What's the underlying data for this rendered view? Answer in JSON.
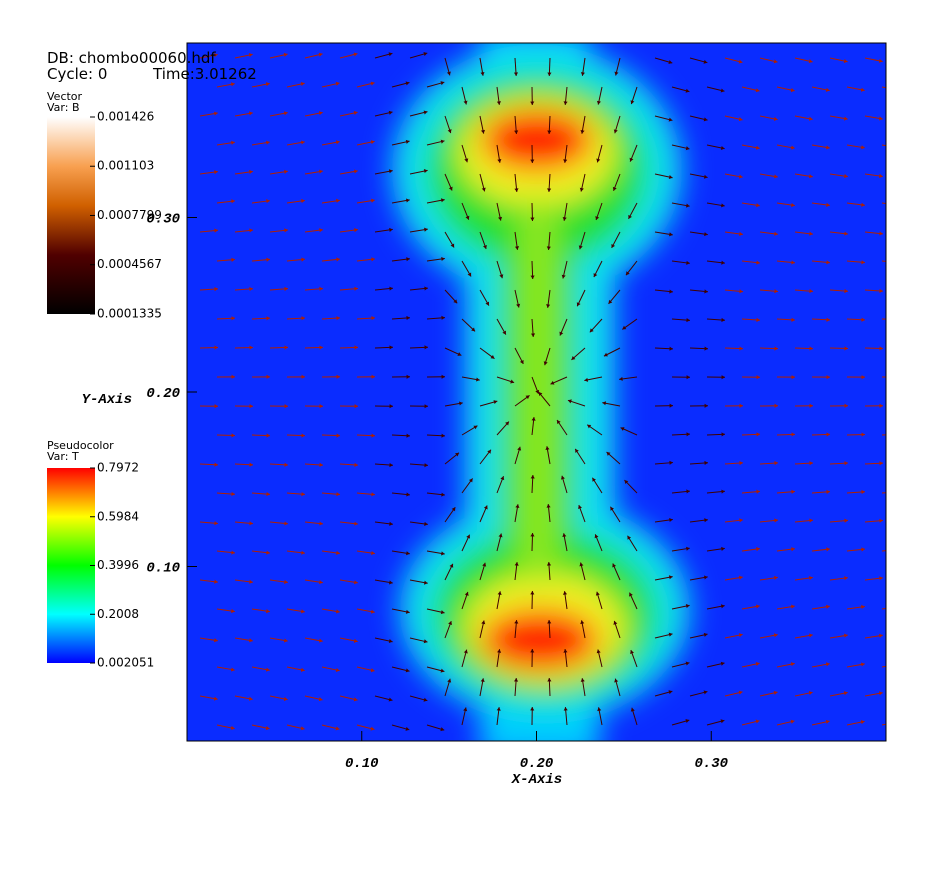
{
  "chart_data": {
    "type": "pseudocolor",
    "db_label": "DB: chombo00060.hdf",
    "cycle_label": "Cycle: 0",
    "time_label": "Time:3.01262",
    "x_label": "X-Axis",
    "y_label": "Y-Axis",
    "xlim": [
      0,
      0.4
    ],
    "ylim": [
      0,
      0.4
    ],
    "xticks": [
      {
        "value": 0.1,
        "label": "0.10"
      },
      {
        "value": 0.2,
        "label": "0.20"
      },
      {
        "value": 0.3,
        "label": "0.30"
      }
    ],
    "yticks": [
      {
        "value": 0.1,
        "label": "0.10"
      },
      {
        "value": 0.2,
        "label": "0.20"
      },
      {
        "value": 0.3,
        "label": "0.30"
      }
    ],
    "legends": [
      {
        "title": "Vector",
        "var": "Var: B",
        "ticks": [
          0.001426,
          0.001103,
          0.0007799,
          0.0004567,
          0.0001335
        ]
      },
      {
        "title": "Pseudocolor",
        "var": "Var: T",
        "ticks": [
          0.7972,
          0.5984,
          0.3996,
          0.2008,
          0.002051
        ]
      }
    ]
  }
}
